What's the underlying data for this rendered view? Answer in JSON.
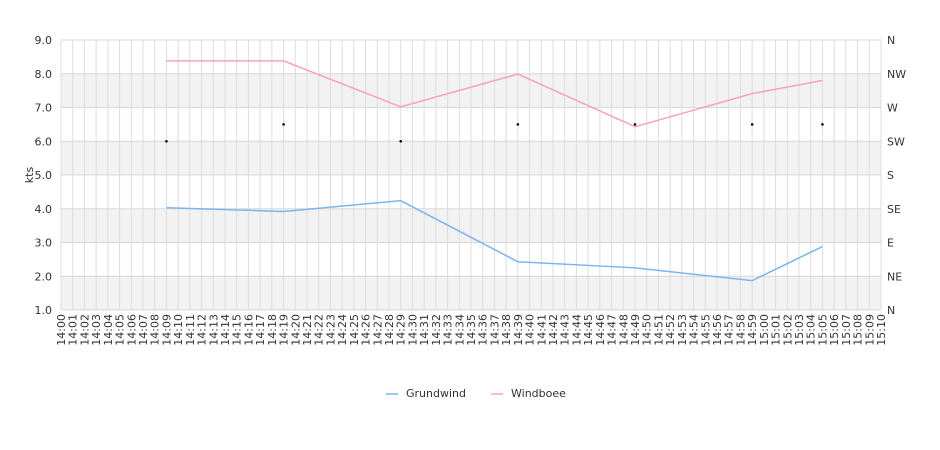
{
  "chart_data": {
    "type": "line",
    "ylabel": "kts",
    "ylim": [
      1.0,
      9.0
    ],
    "y_ticks": [
      "1.0",
      "2.0",
      "3.0",
      "4.0",
      "5.0",
      "6.0",
      "7.0",
      "8.0",
      "9.0"
    ],
    "direction_axis": [
      "N",
      "NE",
      "E",
      "SE",
      "S",
      "SW",
      "W",
      "NW",
      "N"
    ],
    "x_ticks": [
      "14:00",
      "14:01",
      "14:02",
      "14:03",
      "14:04",
      "14:05",
      "14:06",
      "14:07",
      "14:08",
      "14:09",
      "14:10",
      "14:11",
      "14:12",
      "14:13",
      "14:14",
      "14:15",
      "14:16",
      "14:17",
      "14:18",
      "14:19",
      "14:20",
      "14:21",
      "14:22",
      "14:23",
      "14:24",
      "14:25",
      "14:26",
      "14:27",
      "14:28",
      "14:29",
      "14:30",
      "14:31",
      "14:32",
      "14:33",
      "14:34",
      "14:35",
      "14:36",
      "14:37",
      "14:38",
      "14:39",
      "14:40",
      "14:41",
      "14:42",
      "14:43",
      "14:44",
      "14:45",
      "14:46",
      "14:47",
      "14:48",
      "14:49",
      "14:50",
      "14:51",
      "14:52",
      "14:53",
      "14:54",
      "14:55",
      "14:56",
      "14:57",
      "14:58",
      "14:59",
      "15:00",
      "15:01",
      "15:02",
      "15:03",
      "15:04",
      "15:05",
      "15:06",
      "15:07",
      "15:08",
      "15:09",
      "15:10"
    ],
    "x": [
      "14:09",
      "14:19",
      "14:29",
      "14:39",
      "14:49",
      "14:59",
      "15:05"
    ],
    "series": [
      {
        "name": "Grundwind",
        "color": "#7cb5ec",
        "values": [
          4.03,
          3.92,
          4.24,
          2.43,
          2.25,
          1.87,
          2.88
        ]
      },
      {
        "name": "Windboee",
        "color": "#f7a0c8",
        "values": [
          8.38,
          8.38,
          7.02,
          7.99,
          6.43,
          7.41,
          7.8
        ]
      }
    ],
    "direction_points": [
      "SW",
      "WSW",
      "SW",
      "WSW",
      "WSW",
      "WSW",
      "WSW"
    ],
    "grid": true,
    "legend": "bottom-center"
  }
}
